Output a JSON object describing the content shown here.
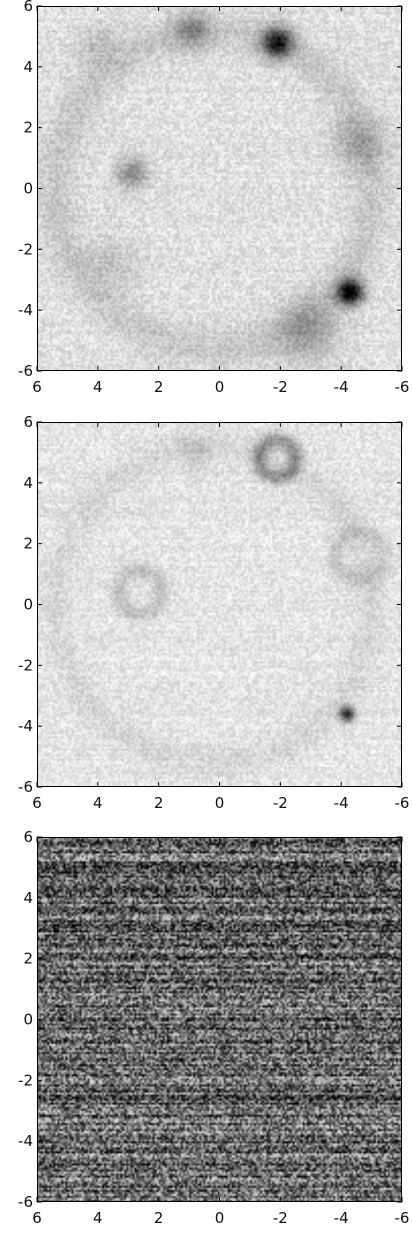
{
  "chart_data": [
    {
      "type": "heatmap",
      "title": "",
      "xlabel": "",
      "ylabel": "",
      "xlim": [
        6,
        -6
      ],
      "ylim": [
        -6,
        6
      ],
      "x_reversed": true,
      "x_ticks": [
        6,
        4,
        2,
        0,
        -2,
        -4,
        -6
      ],
      "x_tick_labels": [
        "6",
        "4",
        "2",
        "0",
        "-2",
        "-4",
        "-6"
      ],
      "y_ticks": [
        6,
        4,
        2,
        0,
        -2,
        -4,
        -6
      ],
      "y_tick_labels": [
        "6",
        "4",
        "2",
        "0",
        "-2",
        "-4",
        "-6"
      ],
      "colormap": "grayscale (white = low, black = high)",
      "background_level": 0.12,
      "noise_level": 0.1,
      "features": [
        {
          "x": -1.9,
          "y": 4.8,
          "sigma": 0.35,
          "amplitude": 0.75
        },
        {
          "x": 0.9,
          "y": 5.2,
          "sigma": 0.4,
          "amplitude": 0.3
        },
        {
          "x": 2.9,
          "y": 0.5,
          "sigma": 0.35,
          "amplitude": 0.35
        },
        {
          "x": -4.3,
          "y": -3.4,
          "sigma": 0.3,
          "amplitude": 0.9
        },
        {
          "x": -4.6,
          "y": 1.5,
          "sigma": 0.6,
          "amplitude": 0.18
        },
        {
          "x": -2.9,
          "y": -4.7,
          "sigma": 0.7,
          "amplitude": 0.25
        },
        {
          "x": 4.0,
          "y": 4.7,
          "sigma": 0.5,
          "amplitude": 0.12
        },
        {
          "x": 3.5,
          "y": -2.5,
          "sigma": 0.6,
          "amplitude": 0.12
        }
      ],
      "ring": {
        "x": 0.2,
        "y": 0.0,
        "radius": 5.2,
        "width": 0.45,
        "amplitude": 0.1
      }
    },
    {
      "type": "heatmap",
      "title": "",
      "xlabel": "",
      "ylabel": "",
      "xlim": [
        6,
        -6
      ],
      "ylim": [
        -6,
        6
      ],
      "x_reversed": true,
      "x_ticks": [
        6,
        4,
        2,
        0,
        -2,
        -4,
        -6
      ],
      "x_tick_labels": [
        "6",
        "4",
        "2",
        "0",
        "-2",
        "-4",
        "-6"
      ],
      "y_ticks": [
        6,
        4,
        2,
        0,
        -2,
        -4,
        -6
      ],
      "y_tick_labels": [
        "6",
        "4",
        "2",
        "0",
        "-2",
        "-4",
        "-6"
      ],
      "colormap": "grayscale (white = low, black = high)",
      "background_level": 0.1,
      "noise_level": 0.09,
      "features": [
        {
          "x": -4.2,
          "y": -3.6,
          "sigma": 0.18,
          "amplitude": 0.7
        },
        {
          "x": 0.8,
          "y": 5.0,
          "sigma": 0.4,
          "amplitude": 0.1
        }
      ],
      "rings": [
        {
          "x": -1.9,
          "y": 4.8,
          "radius": 0.6,
          "width": 0.18,
          "amplitude": 0.32
        },
        {
          "x": 2.6,
          "y": 0.4,
          "radius": 0.7,
          "width": 0.2,
          "amplitude": 0.14
        },
        {
          "x": -4.6,
          "y": 1.6,
          "radius": 0.8,
          "width": 0.2,
          "amplitude": 0.12
        }
      ],
      "ring": {
        "x": 0.2,
        "y": 0.0,
        "radius": 5.2,
        "width": 0.35,
        "amplitude": 0.06
      }
    },
    {
      "type": "heatmap",
      "title": "",
      "xlabel": "",
      "ylabel": "",
      "xlim": [
        6,
        -6
      ],
      "ylim": [
        -6,
        6
      ],
      "x_reversed": true,
      "x_ticks": [
        6,
        4,
        2,
        0,
        -2,
        -4,
        -6
      ],
      "x_tick_labels": [
        "6",
        "4",
        "2",
        "0",
        "-2",
        "-4",
        "-6"
      ],
      "y_ticks": [
        6,
        4,
        2,
        0,
        -2,
        -4,
        -6
      ],
      "y_tick_labels": [
        "6",
        "4",
        "2",
        "0",
        "-2",
        "-4",
        "-6"
      ],
      "colormap": "grayscale (white = low, black = high)",
      "background_level": 0.6,
      "noise_level": 0.35,
      "features": [],
      "row_striping": true
    }
  ]
}
